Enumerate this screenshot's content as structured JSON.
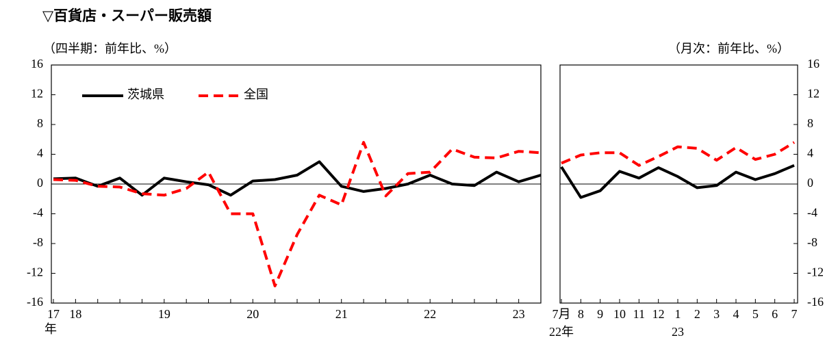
{
  "title": "▽百貨店・スーパー販売額",
  "chart_data": [
    {
      "type": "line",
      "subtitle": "（四半期：前年比、%）",
      "categories": [
        "17",
        "18",
        null,
        null,
        null,
        "19",
        null,
        null,
        null,
        "20",
        null,
        null,
        null,
        "21",
        null,
        null,
        null,
        "22",
        null,
        null,
        null,
        "23",
        null
      ],
      "x_unit": "年",
      "ylim": [
        -16,
        16
      ],
      "yticks": [
        -16,
        -12,
        -8,
        -4,
        0,
        4,
        8,
        12,
        16
      ],
      "y_axis_side": "left",
      "legend": true,
      "series": [
        {
          "name": "茨城県",
          "color": "#000000",
          "dash": false,
          "values": [
            0.7,
            0.8,
            -0.3,
            0.8,
            -1.5,
            0.8,
            0.3,
            -0.1,
            -1.5,
            0.4,
            0.6,
            1.2,
            3.0,
            -0.3,
            -1.0,
            -0.6,
            0.0,
            1.2,
            0.0,
            -0.2,
            1.6,
            0.3,
            1.2
          ]
        },
        {
          "name": "全国",
          "color": "#ff0000",
          "dash": true,
          "values": [
            0.6,
            0.5,
            -0.3,
            -0.4,
            -1.3,
            -1.5,
            -0.6,
            1.6,
            -4.0,
            -4.0,
            -13.7,
            -6.8,
            -1.5,
            -2.8,
            5.6,
            -1.6,
            1.4,
            1.6,
            4.7,
            3.6,
            3.5,
            4.4,
            4.2
          ]
        }
      ]
    },
    {
      "type": "line",
      "subtitle": "（月次：前年比、%）",
      "categories": [
        "7月",
        "8",
        "9",
        "10",
        "11",
        "12",
        "1",
        "2",
        "3",
        "4",
        "5",
        "6",
        "7"
      ],
      "x_sublabels": [
        "22年",
        null,
        null,
        null,
        null,
        null,
        "23",
        null,
        null,
        null,
        null,
        null,
        null
      ],
      "ylim": [
        -16,
        16
      ],
      "yticks": [
        -16,
        -12,
        -8,
        -4,
        0,
        4,
        8,
        12,
        16
      ],
      "y_axis_side": "right",
      "legend": false,
      "series": [
        {
          "color": "#000000",
          "dash": false,
          "values": [
            2.3,
            -1.8,
            -0.9,
            1.7,
            0.8,
            2.2,
            1.0,
            -0.5,
            -0.2,
            1.6,
            0.6,
            1.4,
            2.5
          ]
        },
        {
          "color": "#ff0000",
          "dash": true,
          "values": [
            2.8,
            3.9,
            4.2,
            4.2,
            2.5,
            3.7,
            5.0,
            4.8,
            3.2,
            4.9,
            3.3,
            4.0,
            5.6
          ]
        }
      ]
    }
  ]
}
